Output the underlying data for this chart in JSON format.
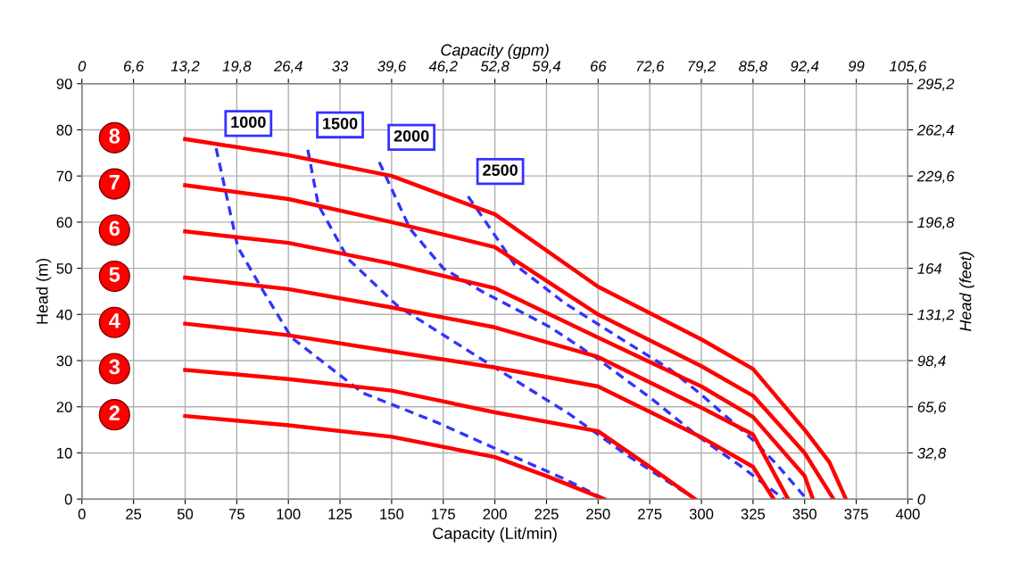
{
  "chart_data": {
    "type": "line",
    "xlabel": "Capacity (Lit/min)",
    "ylabel": "Head (m)",
    "x2label": "Capacity (gpm)",
    "y2label": "Head (feet)",
    "xlim": [
      0,
      400
    ],
    "xticks": [
      0,
      25,
      50,
      75,
      100,
      125,
      150,
      175,
      200,
      225,
      250,
      275,
      300,
      325,
      350,
      375,
      400
    ],
    "ylim": [
      0,
      90
    ],
    "yticks": [
      0,
      10,
      20,
      30,
      40,
      50,
      60,
      70,
      80,
      90
    ],
    "x2lim": [
      0,
      105.6
    ],
    "x2ticks": [
      0,
      {
        "value": 6.6,
        "label": "6,6"
      },
      {
        "value": 13.2,
        "label": "13,2"
      },
      {
        "value": 19.8,
        "label": "19,8"
      },
      {
        "value": 26.4,
        "label": "26,4"
      },
      33,
      {
        "value": 39.6,
        "label": "39,6"
      },
      {
        "value": 46.2,
        "label": "46,2"
      },
      {
        "value": 52.8,
        "label": "52,8"
      },
      {
        "value": 59.4,
        "label": "59,4"
      },
      66,
      {
        "value": 72.6,
        "label": "72,6"
      },
      {
        "value": 79.2,
        "label": "79,2"
      },
      {
        "value": 85.8,
        "label": "85,8"
      },
      {
        "value": 92.4,
        "label": "92,4"
      },
      99,
      {
        "value": 105.6,
        "label": "105,6"
      }
    ],
    "y2lim": [
      0,
      295.2
    ],
    "y2ticks": [
      0,
      {
        "value": 32.8,
        "label": "32,8"
      },
      {
        "value": 65.6,
        "label": "65,6"
      },
      {
        "value": 98.4,
        "label": "98,4"
      },
      164,
      {
        "value": 131.2,
        "label": "131,2"
      },
      {
        "value": 196.8,
        "label": "196,8"
      },
      {
        "value": 229.6,
        "label": "229,6"
      },
      {
        "value": 262.4,
        "label": "262,4"
      },
      {
        "value": 295.2,
        "label": "295,2"
      }
    ],
    "grid": true,
    "legend": false,
    "marker": "none",
    "series": [
      {
        "name": "8",
        "color": "#ff0000",
        "line_style": "solid",
        "x": [
          50,
          100,
          150,
          200,
          250,
          300,
          325,
          350,
          362,
          370
        ],
        "values": [
          78,
          74.5,
          70,
          61.7,
          46,
          34.6,
          28.2,
          15,
          8,
          0
        ]
      },
      {
        "name": "7",
        "color": "#ff0000",
        "line_style": "solid",
        "x": [
          50,
          100,
          150,
          200,
          250,
          300,
          325,
          350,
          364
        ],
        "values": [
          68,
          65,
          60,
          54.6,
          40,
          28.8,
          22.4,
          10,
          0
        ]
      },
      {
        "name": "6",
        "color": "#ff0000",
        "line_style": "solid",
        "x": [
          50,
          100,
          150,
          200,
          250,
          300,
          325,
          350,
          354
        ],
        "values": [
          58,
          55.5,
          51,
          45.7,
          35,
          24.4,
          17.8,
          5,
          0
        ]
      },
      {
        "name": "5",
        "color": "#ff0000",
        "line_style": "solid",
        "x": [
          50,
          100,
          150,
          200,
          250,
          300,
          325,
          342
        ],
        "values": [
          48,
          45.5,
          41.5,
          37.2,
          30.8,
          19.8,
          14,
          0
        ]
      },
      {
        "name": "4",
        "color": "#ff0000",
        "line_style": "solid",
        "x": [
          50,
          100,
          150,
          200,
          250,
          300,
          325,
          335
        ],
        "values": [
          38,
          35.5,
          32,
          28.5,
          24.4,
          13.4,
          7,
          0
        ]
      },
      {
        "name": "3",
        "color": "#ff0000",
        "line_style": "solid",
        "x": [
          50,
          100,
          150,
          200,
          250,
          275,
          297
        ],
        "values": [
          28,
          26,
          23.5,
          18.8,
          14.7,
          7,
          0
        ]
      },
      {
        "name": "2",
        "color": "#ff0000",
        "line_style": "solid",
        "x": [
          50,
          100,
          150,
          200,
          225,
          253
        ],
        "values": [
          18,
          16,
          13.5,
          9.1,
          5,
          0
        ]
      },
      {
        "name": "1000",
        "color": "#3333ff",
        "line_style": "dashed",
        "x": [
          65,
          75.5,
          87,
          101.5,
          136,
          172,
          201,
          234,
          253
        ],
        "values": [
          76,
          54.6,
          45.7,
          35,
          23,
          16.6,
          10.8,
          4.3,
          0
        ]
      },
      {
        "name": "1500",
        "color": "#3333ff",
        "line_style": "dashed",
        "x": [
          109.4,
          114.5,
          129,
          153,
          183,
          201,
          235.5,
          264,
          297
        ],
        "values": [
          75.7,
          63.7,
          52,
          41.8,
          33.3,
          28.2,
          18.6,
          9.5,
          0
        ]
      },
      {
        "name": "2000",
        "color": "#3333ff",
        "line_style": "dashed",
        "x": [
          144,
          159,
          175,
          193.7,
          227,
          248.5,
          276,
          299,
          318,
          340
        ],
        "values": [
          73,
          58.5,
          50,
          45,
          37.2,
          30.8,
          21.7,
          13.4,
          7.5,
          0
        ]
      },
      {
        "name": "2500",
        "color": "#3333ff",
        "line_style": "dashed",
        "x": [
          187,
          192,
          209.6,
          234,
          265.8,
          284.5,
          299,
          325,
          336.5,
          351
        ],
        "values": [
          65.6,
          62.4,
          50.8,
          42.4,
          33.4,
          28.2,
          23,
          12.8,
          7.5,
          0
        ]
      }
    ]
  }
}
